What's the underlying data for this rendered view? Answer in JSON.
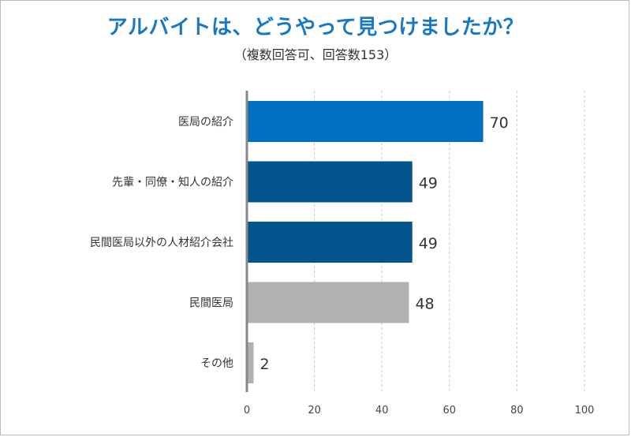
{
  "chart_data": {
    "type": "bar",
    "orientation": "horizontal",
    "title": "アルバイトは、どうやって見つけましたか？",
    "subtitle": "（複数回答可、回答数153）",
    "categories": [
      "医局の紹介",
      "先輩・同僚・知人の紹介",
      "民間医局以外の人材紹介会社",
      "民間医局",
      "その他"
    ],
    "values": [
      70,
      49,
      49,
      48,
      2
    ],
    "colors": [
      "#0070c0",
      "#02548c",
      "#02548c",
      "#b1b1b1",
      "#b1b1b1"
    ],
    "xlim": [
      0,
      100
    ],
    "xticks": [
      0,
      20,
      40,
      60,
      80,
      100
    ],
    "grid": true
  }
}
